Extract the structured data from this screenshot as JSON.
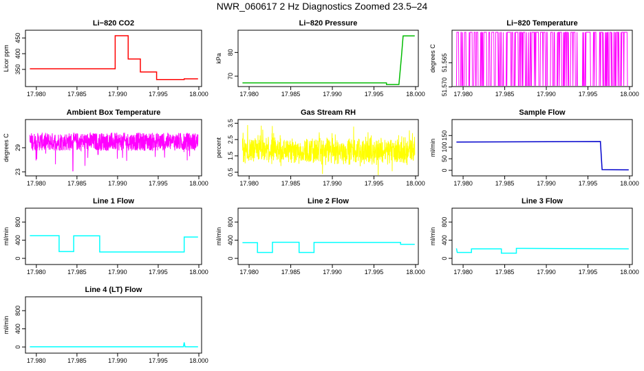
{
  "page": {
    "title": "NWR_060617  2 Hz Diagnostics Zoomed 23.5–24"
  },
  "chart_data": [
    {
      "type": "line",
      "title": "Li−820 CO2",
      "ylabel": "Licor ppm",
      "color": "#ff0000",
      "xlim": [
        17.979,
        18.0
      ],
      "ylim": [
        302,
        468
      ],
      "xticks": [
        "17.980",
        "17.985",
        "17.990",
        "17.995",
        "18.000"
      ],
      "yticks": [
        350,
        400,
        450
      ],
      "series": [
        {
          "x": [
            17.9792,
            17.9897,
            17.9897,
            17.9913,
            17.9913,
            17.9928,
            17.9928,
            17.9948,
            17.9948,
            17.9982,
            17.9982,
            17.9999
          ],
          "y": [
            352,
            352,
            457,
            457,
            383,
            383,
            342,
            342,
            318,
            318,
            320,
            320
          ]
        }
      ]
    },
    {
      "type": "line",
      "title": "Li−820 Pressure",
      "ylabel": "kPa",
      "color": "#00bb00",
      "xlim": [
        17.979,
        18.0
      ],
      "ylim": [
        66.5,
        88.5
      ],
      "xticks": [
        "17.980",
        "17.985",
        "17.990",
        "17.995",
        "18.000"
      ],
      "yticks": [
        70,
        80
      ],
      "series": [
        {
          "x": [
            17.9792,
            17.9965,
            17.9965,
            17.998,
            17.9983,
            17.9985,
            17.9999
          ],
          "y": [
            67.2,
            67.2,
            66.5,
            66.5,
            78,
            87,
            87
          ]
        }
      ]
    },
    {
      "type": "line",
      "title": "Li−820 Temperature",
      "ylabel": "degrees C",
      "color": "#ff00ff",
      "xlim": [
        17.979,
        18.0
      ],
      "ylim": [
        51.5695,
        51.5587
      ],
      "xticks": [
        "17.980",
        "17.985",
        "17.990",
        "17.995",
        "18.000"
      ],
      "yticks": [
        "51.570",
        "51.565"
      ],
      "series": [
        {
          "x": [
            17.9792,
            17.9999
          ],
          "y": [
            51.57,
            51.5587
          ]
        }
      ]
    },
    {
      "type": "line",
      "title": "Ambient Box Temperature",
      "ylabel": "degrees C",
      "color": "#ff00ff",
      "xlim": [
        17.979,
        18.0
      ],
      "ylim": [
        22.5,
        35.5
      ],
      "xticks": [
        "17.980",
        "17.985",
        "17.990",
        "17.995",
        "18.000"
      ],
      "yticks": [
        23.0,
        29.0
      ],
      "series": [
        {
          "x": [
            17.9792,
            17.9999
          ],
          "y": [
            30.5,
            30.5
          ]
        }
      ]
    },
    {
      "type": "line",
      "title": "Gas Stream RH",
      "ylabel": "percent",
      "color": "#ffff00",
      "xlim": [
        17.979,
        18.0
      ],
      "ylim": [
        0.4,
        3.6
      ],
      "xticks": [
        "17.980",
        "17.985",
        "17.990",
        "17.995",
        "18.000"
      ],
      "yticks": [
        0.5,
        1.5,
        2.5,
        3.5
      ],
      "series": [
        {
          "x": [
            17.9792,
            17.9999
          ],
          "y": [
            1.8,
            1.8
          ]
        }
      ]
    },
    {
      "type": "line",
      "title": "Sample Flow",
      "ylabel": "ml/min",
      "color": "#0000cc",
      "xlim": [
        17.979,
        18.0
      ],
      "ylim": [
        -15,
        210
      ],
      "xticks": [
        "17.980",
        "17.985",
        "17.990",
        "17.995",
        "18.000"
      ],
      "yticks": [
        0,
        50,
        100,
        150
      ],
      "series": [
        {
          "x": [
            17.9792,
            17.9965,
            17.9965,
            17.9967,
            17.9999
          ],
          "y": [
            122,
            124,
            120,
            3,
            2
          ]
        }
      ]
    },
    {
      "type": "line",
      "title": "Line 1 Flow",
      "ylabel": "ml/min",
      "color": "#00ffff",
      "xlim": [
        17.979,
        18.0
      ],
      "ylim": [
        -90,
        1060
      ],
      "xticks": [
        "17.980",
        "17.985",
        "17.990",
        "17.995",
        "18.000"
      ],
      "yticks": [
        0,
        400,
        800
      ],
      "series": [
        {
          "x": [
            17.9792,
            17.9828,
            17.9828,
            17.9846,
            17.9846,
            17.9878,
            17.9878,
            17.9982,
            17.9982,
            17.9999
          ],
          "y": [
            500,
            500,
            150,
            150,
            495,
            495,
            140,
            140,
            470,
            470
          ]
        }
      ]
    },
    {
      "type": "line",
      "title": "Line 2 Flow",
      "ylabel": "ml/min",
      "color": "#00ffff",
      "xlim": [
        17.979,
        18.0
      ],
      "ylim": [
        -90,
        1060
      ],
      "xticks": [
        "17.980",
        "17.985",
        "17.990",
        "17.995",
        "18.000"
      ],
      "yticks": [
        0,
        400,
        800
      ],
      "series": [
        {
          "x": [
            17.9792,
            17.981,
            17.981,
            17.9828,
            17.9828,
            17.986,
            17.986,
            17.9878,
            17.9878,
            17.9982,
            17.9982,
            17.9999
          ],
          "y": [
            345,
            345,
            130,
            130,
            355,
            355,
            130,
            130,
            350,
            350,
            310,
            310
          ]
        }
      ]
    },
    {
      "type": "line",
      "title": "Line 3 Flow",
      "ylabel": "ml/min",
      "color": "#00ffff",
      "xlim": [
        17.979,
        18.0
      ],
      "ylim": [
        -90,
        1060
      ],
      "xticks": [
        "17.980",
        "17.985",
        "17.990",
        "17.995",
        "18.000"
      ],
      "yticks": [
        0,
        400,
        800
      ],
      "series": [
        {
          "x": [
            17.9792,
            17.9793,
            17.981,
            17.981,
            17.9846,
            17.9846,
            17.9864,
            17.9864,
            17.9999
          ],
          "y": [
            220,
            130,
            130,
            210,
            210,
            115,
            115,
            220,
            210
          ]
        }
      ]
    },
    {
      "type": "line",
      "title": "Line 4 (LT) Flow",
      "ylabel": "ml/min",
      "color": "#00ffff",
      "xlim": [
        17.979,
        18.0
      ],
      "ylim": [
        -90,
        1060
      ],
      "xticks": [
        "17.980",
        "17.985",
        "17.990",
        "17.995",
        "18.000"
      ],
      "yticks": [
        0,
        400,
        800
      ],
      "series": [
        {
          "x": [
            17.9792,
            17.9981,
            17.9982,
            17.9983,
            17.9999
          ],
          "y": [
            5,
            5,
            100,
            5,
            5
          ]
        }
      ]
    }
  ]
}
